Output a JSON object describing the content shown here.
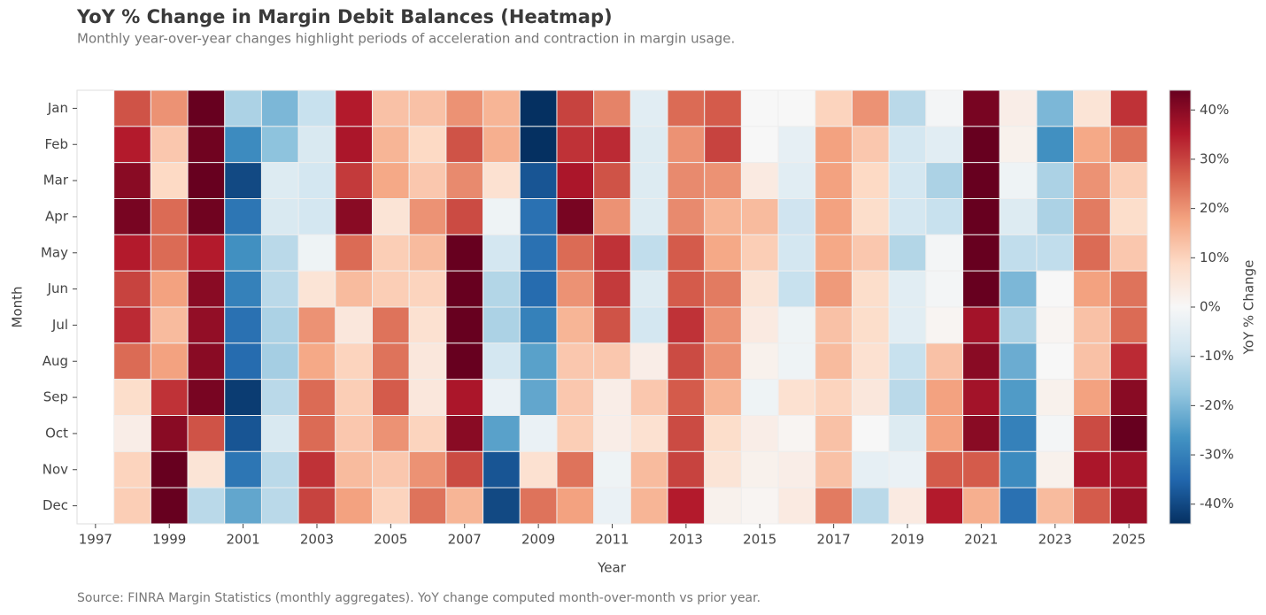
{
  "chart_data": {
    "type": "heatmap",
    "title": "YoY % Change in Margin Debit Balances (Heatmap)",
    "subtitle": "Monthly year-over-year changes highlight periods of acceleration and contraction in margin usage.",
    "x_label": "Year",
    "y_label": "Month",
    "colorbar_label": "YoY % Change",
    "source": "Source: FINRA Margin Statistics (monthly aggregates). YoY change computed month-over-month vs prior year.",
    "categories": [
      "1997",
      null,
      "1999",
      null,
      "2001",
      null,
      "2003",
      null,
      "2005",
      null,
      "2007",
      null,
      "2009",
      null,
      "2011",
      null,
      "2013",
      null,
      "2015",
      null,
      "2017",
      null,
      "2019",
      null,
      "2021",
      null,
      "2023",
      null,
      "2025"
    ],
    "rows": [
      "Jan",
      "Feb",
      "Mar",
      "Apr",
      "May",
      "Jun",
      "Jul",
      "Aug",
      "Sep",
      "Oct",
      "Nov",
      "Dec"
    ],
    "values": [
      [
        null,
        28,
        20,
        44,
        -14,
        -20,
        -10,
        35,
        13,
        13,
        20,
        15,
        -45,
        30,
        22,
        -5,
        25,
        27,
        0,
        0,
        10,
        20,
        -12,
        -1,
        42,
        3,
        -20,
        6,
        32
      ],
      [
        null,
        35,
        12,
        43,
        -28,
        -18,
        -7,
        36,
        15,
        9,
        28,
        16,
        -44,
        32,
        33,
        -6,
        20,
        30,
        0,
        -4,
        18,
        12,
        -8,
        -5,
        44,
        2,
        -27,
        17,
        24
      ],
      [
        null,
        40,
        9,
        44,
        -40,
        -6,
        -8,
        31,
        17,
        12,
        21,
        7,
        -38,
        36,
        28,
        -6,
        21,
        20,
        4,
        -5,
        18,
        9,
        -8,
        -14,
        44,
        -2,
        -14,
        20,
        11
      ],
      [
        null,
        42,
        25,
        43,
        -32,
        -7,
        -8,
        40,
        6,
        20,
        29,
        -2,
        -33,
        42,
        20,
        -6,
        21,
        15,
        14,
        -9,
        18,
        8,
        -8,
        -10,
        44,
        -6,
        -14,
        23,
        8
      ],
      [
        null,
        35,
        25,
        35,
        -27,
        -12,
        -2,
        25,
        11,
        14,
        44,
        -8,
        -33,
        25,
        32,
        -11,
        27,
        17,
        11,
        -8,
        17,
        12,
        -13,
        -1,
        44,
        -11,
        -11,
        25,
        12
      ],
      [
        null,
        30,
        18,
        40,
        -30,
        -12,
        6,
        14,
        11,
        10,
        44,
        -13,
        -34,
        20,
        31,
        -6,
        27,
        23,
        6,
        -10,
        19,
        8,
        -5,
        -1,
        44,
        -20,
        0,
        18,
        24
      ],
      [
        null,
        33,
        14,
        39,
        -33,
        -14,
        20,
        5,
        24,
        7,
        44,
        -14,
        -30,
        15,
        28,
        -8,
        32,
        20,
        4,
        -2,
        13,
        8,
        -5,
        1,
        37,
        -14,
        1,
        13,
        25
      ],
      [
        null,
        25,
        18,
        40,
        -34,
        -15,
        17,
        10,
        24,
        5,
        44,
        -8,
        -24,
        12,
        12,
        3,
        29,
        20,
        2,
        -2,
        14,
        7,
        -10,
        13,
        40,
        -22,
        0,
        13,
        33
      ],
      [
        null,
        8,
        32,
        42,
        -42,
        -12,
        25,
        11,
        27,
        5,
        36,
        -3,
        -23,
        12,
        3,
        12,
        27,
        15,
        -2,
        7,
        10,
        5,
        -12,
        18,
        37,
        -25,
        2,
        18,
        40
      ],
      [
        null,
        3,
        40,
        28,
        -38,
        -7,
        25,
        12,
        20,
        10,
        40,
        -24,
        -3,
        11,
        3,
        7,
        29,
        8,
        3,
        1,
        13,
        0,
        -6,
        18,
        40,
        -30,
        -1,
        29,
        44
      ],
      [
        null,
        10,
        44,
        6,
        -32,
        -12,
        32,
        14,
        12,
        20,
        29,
        -38,
        7,
        24,
        -2,
        14,
        30,
        6,
        2,
        3,
        13,
        -4,
        -3,
        27,
        27,
        -28,
        2,
        36,
        37
      ],
      [
        null,
        11,
        44,
        -12,
        -23,
        -12,
        30,
        18,
        10,
        24,
        15,
        -40,
        24,
        18,
        -3,
        15,
        35,
        2,
        1,
        4,
        23,
        -12,
        4,
        35,
        16,
        -33,
        14,
        27,
        38
      ]
    ],
    "vlim": [
      -44,
      44
    ],
    "colorbar_ticks": [
      {
        "value": -40,
        "label": "-40%"
      },
      {
        "value": -30,
        "label": "-30%"
      },
      {
        "value": -20,
        "label": "-20%"
      },
      {
        "value": -10,
        "label": "-10%"
      },
      {
        "value": 0,
        "label": "0%"
      },
      {
        "value": 10,
        "label": "10%"
      },
      {
        "value": 20,
        "label": "20%"
      },
      {
        "value": 30,
        "label": "30%"
      },
      {
        "value": 40,
        "label": "40%"
      }
    ],
    "colormap": [
      "#053061",
      "#2166ac",
      "#4393c3",
      "#92c5de",
      "#d1e5f0",
      "#f7f7f7",
      "#fddbc7",
      "#f4a582",
      "#d6604d",
      "#b2182b",
      "#67001f"
    ]
  }
}
